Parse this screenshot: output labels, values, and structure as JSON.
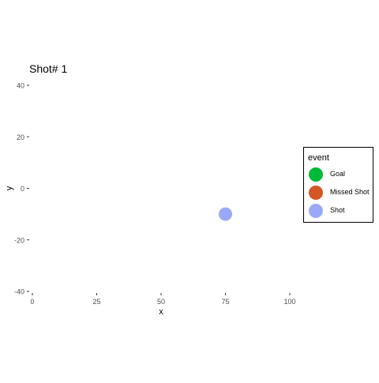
{
  "chart_data": {
    "type": "scatter",
    "title": "Shot# 1",
    "xlabel": "x",
    "ylabel": "y",
    "xlim": [
      0,
      100
    ],
    "ylim": [
      -40,
      40
    ],
    "x_ticks": [
      0,
      25,
      50,
      75,
      100
    ],
    "y_ticks": [
      40,
      20,
      0,
      -20,
      -40
    ],
    "grid": false,
    "legend_position": "right",
    "legend": {
      "title": "event",
      "items": [
        {
          "label": "Goal",
          "color": "#00BA38"
        },
        {
          "label": "Missed Shot",
          "color": "#D45526"
        },
        {
          "label": "Shot",
          "color": "#9AA9F5"
        }
      ]
    },
    "points": [
      {
        "x": 75,
        "y": -10,
        "event": "Shot",
        "color": "#9AA9F5"
      }
    ]
  }
}
